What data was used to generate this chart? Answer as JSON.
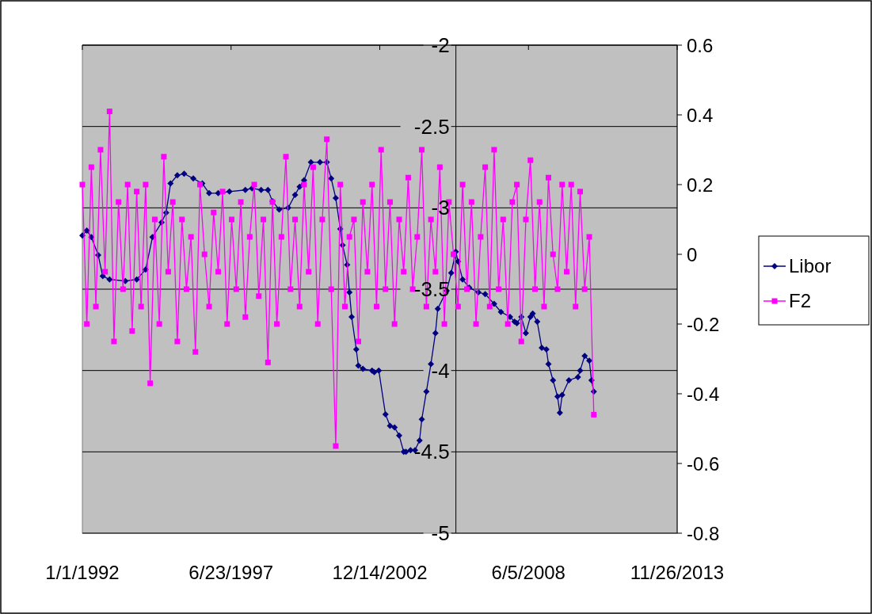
{
  "chart_data": {
    "type": "line",
    "xlim": [
      "1992-01-01",
      "2013-11-26"
    ],
    "xticks": [
      {
        "value": "1992-01-01",
        "label": "1/1/1992"
      },
      {
        "value": "1997-06-23",
        "label": "6/23/1997"
      },
      {
        "value": "2002-12-14",
        "label": "12/14/2002"
      },
      {
        "value": "2008-06-05",
        "label": "6/5/2008"
      },
      {
        "value": "2013-11-26",
        "label": "11/26/2013"
      }
    ],
    "ylim": [
      -5,
      -2
    ],
    "yticks": [
      -5,
      -4.5,
      -4,
      -3.5,
      -3,
      -2.5,
      -2
    ],
    "y2lim": [
      -0.8,
      0.6
    ],
    "y2ticks": [
      -0.8,
      -0.6,
      -0.4,
      -0.2,
      0,
      0.2,
      0.4,
      0.6
    ],
    "grid": "y",
    "legend": "right",
    "line_style": "solid",
    "series": [
      {
        "name": "Libor",
        "color": "#000080",
        "marker": "diamond",
        "x": [
          "1992-01",
          "1992-03",
          "1992-05",
          "1992-08",
          "1992-10",
          "1993-01",
          "1993-08",
          "1994-01",
          "1994-05",
          "1994-08",
          "1994-12",
          "1995-02",
          "1995-04",
          "1995-07",
          "1995-10",
          "1996-02",
          "1996-06",
          "1996-09",
          "1997-01",
          "1997-06",
          "1998-01",
          "1998-04",
          "1998-08",
          "1998-11",
          "1999-01",
          "1999-04",
          "1999-08",
          "1999-11",
          "2000-01",
          "2000-03",
          "2000-06",
          "2000-10",
          "2001-01",
          "2001-03",
          "2001-05",
          "2001-07",
          "2001-08",
          "2001-10",
          "2001-11",
          "2001-12",
          "2002-02",
          "2002-03",
          "2002-05",
          "2002-09",
          "2002-10",
          "2002-12",
          "2003-03",
          "2003-05",
          "2003-07",
          "2003-09",
          "2003-11",
          "2003-12",
          "2004-02",
          "2004-04",
          "2004-06",
          "2004-07",
          "2004-09",
          "2004-11",
          "2005-01",
          "2005-02",
          "2005-06",
          "2005-08",
          "2005-10",
          "2005-11",
          "2006-01",
          "2006-04",
          "2006-08",
          "2006-11",
          "2007-03",
          "2007-06",
          "2007-10",
          "2007-12",
          "2008-01",
          "2008-03",
          "2008-05",
          "2008-07",
          "2008-08",
          "2008-10",
          "2008-12",
          "2009-02",
          "2009-03",
          "2009-05",
          "2009-07",
          "2009-08",
          "2009-09",
          "2009-12",
          "2010-04",
          "2010-05",
          "2010-07",
          "2010-09",
          "2010-10",
          "2010-11"
        ],
        "values": [
          -3.17,
          -3.14,
          -3.18,
          -3.29,
          -3.42,
          -3.44,
          -3.45,
          -3.44,
          -3.38,
          -3.18,
          -3.09,
          -3.03,
          -2.85,
          -2.8,
          -2.79,
          -2.82,
          -2.85,
          -2.91,
          -2.91,
          -2.9,
          -2.89,
          -2.88,
          -2.89,
          -2.89,
          -2.96,
          -3.01,
          -3.0,
          -2.92,
          -2.87,
          -2.83,
          -2.72,
          -2.72,
          -2.72,
          -2.82,
          -2.94,
          -3.13,
          -3.23,
          -3.35,
          -3.52,
          -3.67,
          -3.87,
          -3.97,
          -3.99,
          -4.0,
          -4.01,
          -4.0,
          -4.27,
          -4.34,
          -4.35,
          -4.4,
          -4.5,
          -4.5,
          -4.49,
          -4.49,
          -4.43,
          -4.3,
          -4.13,
          -3.96,
          -3.77,
          -3.62,
          -3.51,
          -3.4,
          -3.27,
          -3.33,
          -3.44,
          -3.49,
          -3.52,
          -3.53,
          -3.59,
          -3.64,
          -3.67,
          -3.7,
          -3.71,
          -3.67,
          -3.77,
          -3.67,
          -3.65,
          -3.7,
          -3.86,
          -3.87,
          -3.96,
          -4.06,
          -4.16,
          -4.26,
          -4.15,
          -4.06,
          -4.04,
          -4.0,
          -3.91,
          -3.94,
          -4.06,
          -4.13
        ]
      },
      {
        "name": "F2",
        "color": "#ff00ff",
        "marker": "square",
        "axis": "y2",
        "x": [
          "1992-01",
          "1992-03",
          "1992-05",
          "1992-07",
          "1992-09",
          "1992-11",
          "1993-01",
          "1993-03",
          "1993-05",
          "1993-07",
          "1993-09",
          "1993-11",
          "1994-01",
          "1994-03",
          "1994-05",
          "1994-07",
          "1994-09",
          "1994-11",
          "1995-01",
          "1995-03",
          "1995-05",
          "1995-07",
          "1995-09",
          "1995-11",
          "1996-01",
          "1996-03",
          "1996-05",
          "1996-07",
          "1996-09",
          "1996-11",
          "1997-01",
          "1997-03",
          "1997-05",
          "1997-07",
          "1997-09",
          "1997-11",
          "1998-01",
          "1998-03",
          "1998-05",
          "1998-07",
          "1998-09",
          "1998-11",
          "1999-01",
          "1999-03",
          "1999-05",
          "1999-07",
          "1999-09",
          "1999-11",
          "2000-01",
          "2000-03",
          "2000-05",
          "2000-07",
          "2000-09",
          "2000-11",
          "2001-01",
          "2001-03",
          "2001-05",
          "2001-07",
          "2001-09",
          "2001-11",
          "2002-01",
          "2002-03",
          "2002-05",
          "2002-07",
          "2002-09",
          "2002-11",
          "2003-01",
          "2003-03",
          "2003-05",
          "2003-07",
          "2003-09",
          "2003-11",
          "2004-01",
          "2004-03",
          "2004-05",
          "2004-07",
          "2004-09",
          "2004-11",
          "2005-01",
          "2005-03",
          "2005-05",
          "2005-07",
          "2005-09",
          "2005-11",
          "2006-01",
          "2006-03",
          "2006-05",
          "2006-07",
          "2006-09",
          "2006-11",
          "2007-01",
          "2007-03",
          "2007-05",
          "2007-07",
          "2007-09",
          "2007-11",
          "2008-01",
          "2008-03",
          "2008-05",
          "2008-07",
          "2008-09",
          "2008-11",
          "2009-01",
          "2009-03",
          "2009-05",
          "2009-07",
          "2009-09",
          "2009-11",
          "2010-01",
          "2010-03",
          "2010-05",
          "2010-07",
          "2010-09",
          "2010-11"
        ],
        "values": [
          0.2,
          -0.2,
          0.25,
          -0.15,
          0.3,
          -0.05,
          0.41,
          -0.25,
          0.15,
          -0.1,
          0.2,
          -0.22,
          0.18,
          -0.15,
          0.2,
          -0.37,
          0.1,
          -0.2,
          0.28,
          -0.05,
          0.15,
          -0.25,
          0.1,
          -0.1,
          0.05,
          -0.28,
          0.2,
          0.0,
          -0.15,
          0.12,
          -0.05,
          0.18,
          -0.2,
          0.1,
          -0.1,
          0.15,
          -0.18,
          0.05,
          0.2,
          -0.12,
          0.1,
          -0.31,
          0.15,
          -0.2,
          0.05,
          0.28,
          -0.1,
          0.1,
          -0.15,
          0.2,
          -0.05,
          0.25,
          -0.2,
          0.1,
          0.33,
          -0.1,
          -0.55,
          0.2,
          -0.15,
          0.05,
          0.1,
          -0.25,
          0.15,
          -0.05,
          0.2,
          -0.15,
          0.3,
          -0.1,
          0.15,
          -0.2,
          0.1,
          -0.05,
          0.22,
          -0.1,
          0.05,
          0.3,
          -0.15,
          0.1,
          -0.05,
          0.25,
          -0.2,
          0.15,
          0.0,
          -0.15,
          0.2,
          -0.1,
          0.15,
          -0.2,
          0.05,
          0.25,
          -0.15,
          0.3,
          -0.1,
          0.1,
          -0.2,
          0.15,
          0.2,
          -0.25,
          0.1,
          0.27,
          -0.1,
          0.15,
          -0.15,
          0.22,
          0.0,
          -0.1,
          0.2,
          -0.05,
          0.2,
          -0.15,
          0.18,
          -0.1,
          0.05,
          -0.46
        ]
      }
    ]
  }
}
